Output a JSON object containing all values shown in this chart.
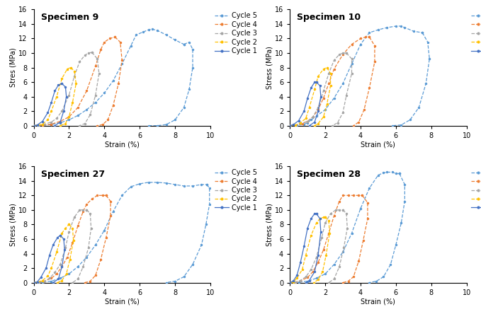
{
  "subplots": [
    {
      "title": "Specimen 9",
      "ylabel": "Stres (MPa)"
    },
    {
      "title": "Specimen 10",
      "ylabel": "Stress (MPa)"
    },
    {
      "title": "Specimen 27",
      "ylabel": "Stress (MPa)"
    },
    {
      "title": "Specimen 28",
      "ylabel": "Stress (MPa)"
    }
  ],
  "cycles_config": [
    {
      "label": "Cycle 5",
      "color": "#5B9BD5",
      "linestyle": "--"
    },
    {
      "label": "Cycle 4",
      "color": "#ED7D31",
      "linestyle": "--"
    },
    {
      "label": "Cycle 3",
      "color": "#A5A5A5",
      "linestyle": "--"
    },
    {
      "label": "Cycle 2",
      "color": "#FFC000",
      "linestyle": "--"
    },
    {
      "label": "Cycle 1",
      "color": "#4472C4",
      "linestyle": "-"
    }
  ],
  "specimen_9": {
    "cycle5_lx": [
      0.0,
      0.5,
      1.0,
      1.5,
      2.0,
      2.5,
      3.0,
      3.5,
      4.0,
      4.5,
      5.0,
      5.5,
      5.8,
      6.2,
      6.5,
      6.7,
      7.0,
      7.5,
      8.0,
      8.5
    ],
    "cycle5_ly": [
      0.0,
      0.05,
      0.15,
      0.4,
      0.8,
      1.4,
      2.2,
      3.2,
      4.5,
      6.2,
      8.5,
      11.0,
      12.5,
      12.9,
      13.2,
      13.3,
      13.1,
      12.5,
      11.8,
      11.2
    ],
    "cycle5_ux": [
      8.5,
      8.8,
      9.0,
      9.0,
      8.8,
      8.5,
      8.0,
      7.5,
      7.0,
      6.5
    ],
    "cycle5_uy": [
      11.2,
      11.5,
      10.5,
      8.0,
      5.0,
      2.5,
      0.8,
      0.15,
      0.0,
      0.0
    ],
    "cycle4_lx": [
      0.0,
      0.5,
      1.0,
      1.5,
      2.0,
      2.5,
      3.0,
      3.5,
      3.8,
      4.0,
      4.3,
      4.6
    ],
    "cycle4_ly": [
      0.0,
      0.05,
      0.2,
      0.6,
      1.2,
      2.5,
      4.8,
      8.2,
      10.5,
      11.5,
      12.0,
      12.2
    ],
    "cycle4_ux": [
      4.6,
      4.9,
      5.0,
      4.8,
      4.5,
      4.2,
      3.9,
      3.6
    ],
    "cycle4_uy": [
      12.2,
      11.5,
      9.0,
      5.8,
      2.8,
      0.8,
      0.15,
      0.0
    ],
    "cycle3_lx": [
      0.0,
      0.3,
      0.6,
      1.0,
      1.3,
      1.6,
      2.0,
      2.3,
      2.6,
      2.9,
      3.1,
      3.3
    ],
    "cycle3_ly": [
      0.0,
      0.05,
      0.2,
      0.5,
      1.0,
      2.0,
      4.2,
      6.8,
      8.8,
      9.7,
      10.0,
      10.1
    ],
    "cycle3_ux": [
      3.3,
      3.6,
      3.7,
      3.5,
      3.2,
      2.9,
      2.6
    ],
    "cycle3_uy": [
      10.1,
      9.2,
      7.2,
      4.2,
      1.5,
      0.3,
      0.0
    ],
    "cycle2_lx": [
      0.0,
      0.2,
      0.5,
      0.8,
      1.0,
      1.3,
      1.6,
      1.9,
      2.1
    ],
    "cycle2_ly": [
      0.0,
      0.05,
      0.2,
      0.8,
      2.0,
      4.0,
      6.5,
      7.8,
      8.0
    ],
    "cycle2_ux": [
      2.1,
      2.3,
      2.4,
      2.2,
      2.0,
      1.8,
      1.5
    ],
    "cycle2_uy": [
      8.0,
      7.5,
      5.8,
      3.2,
      1.2,
      0.3,
      0.0
    ],
    "cycle1_lx": [
      0.0,
      0.2,
      0.5,
      0.8,
      1.0,
      1.2,
      1.4,
      1.6
    ],
    "cycle1_ly": [
      0.0,
      0.1,
      0.6,
      1.8,
      3.2,
      4.8,
      5.6,
      5.8
    ],
    "cycle1_ux": [
      1.6,
      1.8,
      1.85,
      1.7,
      1.5,
      1.2
    ],
    "cycle1_uy": [
      5.8,
      5.3,
      4.0,
      2.0,
      0.5,
      0.0
    ]
  },
  "specimen_10": {
    "cycle5_lx": [
      0.0,
      0.4,
      0.8,
      1.0,
      1.2,
      1.5,
      2.0,
      2.5,
      3.0,
      3.5,
      4.0,
      4.5,
      5.0,
      5.5,
      6.0,
      6.3,
      6.5,
      7.0,
      7.5
    ],
    "cycle5_ly": [
      0.0,
      0.05,
      0.2,
      0.4,
      0.8,
      1.3,
      2.2,
      3.8,
      5.8,
      8.5,
      11.2,
      12.8,
      13.2,
      13.5,
      13.7,
      13.7,
      13.5,
      13.0,
      12.8
    ],
    "cycle5_ux": [
      7.5,
      7.8,
      7.9,
      7.7,
      7.3,
      6.8,
      6.3,
      5.8
    ],
    "cycle5_uy": [
      12.8,
      11.5,
      9.2,
      5.8,
      2.5,
      0.8,
      0.1,
      0.0
    ],
    "cycle4_lx": [
      0.0,
      0.3,
      0.7,
      1.0,
      1.3,
      1.6,
      1.9,
      2.2,
      2.5,
      3.0,
      3.5,
      4.0,
      4.3,
      4.5
    ],
    "cycle4_ly": [
      0.0,
      0.05,
      0.3,
      0.6,
      1.2,
      2.2,
      3.8,
      5.8,
      7.8,
      9.8,
      11.2,
      12.0,
      12.2,
      12.2
    ],
    "cycle4_ux": [
      4.5,
      4.8,
      4.8,
      4.5,
      4.2,
      3.9,
      3.6
    ],
    "cycle4_uy": [
      12.2,
      11.0,
      8.8,
      5.2,
      2.2,
      0.5,
      0.0
    ],
    "cycle3_lx": [
      0.0,
      0.3,
      0.6,
      1.0,
      1.3,
      1.6,
      1.9,
      2.2,
      2.5,
      2.8,
      3.0,
      3.2
    ],
    "cycle3_ly": [
      0.0,
      0.05,
      0.25,
      0.6,
      1.2,
      2.5,
      4.8,
      7.2,
      9.0,
      9.8,
      10.0,
      10.0
    ],
    "cycle3_ux": [
      3.2,
      3.5,
      3.5,
      3.2,
      3.0,
      2.7,
      2.4
    ],
    "cycle3_uy": [
      10.0,
      9.2,
      7.2,
      4.2,
      1.8,
      0.4,
      0.0
    ],
    "cycle2_lx": [
      0.0,
      0.3,
      0.6,
      0.9,
      1.1,
      1.4,
      1.6,
      1.9,
      2.1
    ],
    "cycle2_ly": [
      0.0,
      0.05,
      0.4,
      1.0,
      2.5,
      5.0,
      6.8,
      7.8,
      8.0
    ],
    "cycle2_ux": [
      2.1,
      2.3,
      2.3,
      2.1,
      1.9,
      1.6,
      1.4
    ],
    "cycle2_uy": [
      8.0,
      7.2,
      5.5,
      3.0,
      1.2,
      0.3,
      0.0
    ],
    "cycle1_lx": [
      0.0,
      0.2,
      0.5,
      0.8,
      1.0,
      1.2,
      1.4,
      1.5
    ],
    "cycle1_ly": [
      0.0,
      0.15,
      0.7,
      2.0,
      3.8,
      5.2,
      6.0,
      6.0
    ],
    "cycle1_ux": [
      1.5,
      1.7,
      1.75,
      1.6,
      1.4,
      1.1
    ],
    "cycle1_uy": [
      6.0,
      5.5,
      4.0,
      2.0,
      0.5,
      0.0
    ]
  },
  "specimen_27": {
    "cycle5_lx": [
      0.0,
      0.5,
      1.0,
      1.5,
      2.0,
      2.5,
      3.0,
      3.5,
      4.0,
      4.5,
      5.0,
      5.5,
      6.0,
      6.5,
      7.0,
      7.5,
      8.0,
      8.5,
      9.0,
      9.5,
      9.8
    ],
    "cycle5_ly": [
      0.0,
      0.05,
      0.2,
      0.6,
      1.2,
      2.2,
      3.5,
      5.2,
      7.2,
      9.8,
      12.0,
      13.2,
      13.6,
      13.8,
      13.8,
      13.7,
      13.5,
      13.3,
      13.3,
      13.5,
      13.5
    ],
    "cycle5_ux": [
      9.8,
      9.95,
      9.95,
      9.75,
      9.5,
      9.0,
      8.5,
      8.0,
      7.5
    ],
    "cycle5_uy": [
      13.5,
      13.0,
      10.8,
      8.0,
      5.2,
      2.5,
      0.8,
      0.2,
      0.0
    ],
    "cycle4_lx": [
      0.0,
      0.3,
      0.6,
      1.0,
      1.3,
      1.6,
      1.9,
      2.2,
      2.5,
      2.8,
      3.0,
      3.3,
      3.6,
      3.9,
      4.1
    ],
    "cycle4_ly": [
      0.0,
      0.05,
      0.2,
      0.6,
      1.2,
      2.2,
      3.5,
      5.5,
      7.8,
      9.8,
      10.8,
      11.5,
      12.0,
      12.0,
      12.0
    ],
    "cycle4_ux": [
      4.1,
      4.35,
      4.35,
      4.1,
      3.8,
      3.5,
      3.2,
      2.9
    ],
    "cycle4_uy": [
      12.0,
      11.2,
      9.2,
      6.2,
      3.2,
      1.0,
      0.2,
      0.0
    ],
    "cycle3_lx": [
      0.0,
      0.3,
      0.6,
      0.9,
      1.2,
      1.5,
      1.8,
      2.0,
      2.3,
      2.6,
      2.8,
      3.0
    ],
    "cycle3_ly": [
      0.0,
      0.05,
      0.2,
      0.6,
      1.4,
      2.5,
      4.8,
      7.0,
      9.0,
      10.0,
      10.0,
      10.0
    ],
    "cycle3_ux": [
      3.0,
      3.2,
      3.25,
      3.1,
      2.8,
      2.5,
      2.2
    ],
    "cycle3_uy": [
      10.0,
      9.5,
      7.5,
      4.8,
      2.2,
      0.5,
      0.0
    ],
    "cycle2_lx": [
      0.0,
      0.2,
      0.5,
      0.8,
      1.0,
      1.3,
      1.6,
      1.8,
      2.0
    ],
    "cycle2_ly": [
      0.0,
      0.05,
      0.3,
      0.9,
      2.0,
      4.2,
      6.8,
      7.5,
      8.0
    ],
    "cycle2_ux": [
      2.0,
      2.2,
      2.25,
      2.05,
      1.85,
      1.6,
      1.35
    ],
    "cycle2_uy": [
      8.0,
      7.5,
      5.8,
      3.2,
      1.2,
      0.3,
      0.0
    ],
    "cycle1_lx": [
      0.0,
      0.2,
      0.4,
      0.7,
      0.9,
      1.1,
      1.35,
      1.5
    ],
    "cycle1_ly": [
      0.0,
      0.1,
      0.7,
      2.0,
      3.8,
      5.2,
      6.2,
      6.5
    ],
    "cycle1_ux": [
      1.5,
      1.7,
      1.75,
      1.6,
      1.4,
      1.1
    ],
    "cycle1_uy": [
      6.5,
      6.0,
      4.5,
      2.2,
      0.5,
      0.0
    ]
  },
  "specimen_28": {
    "cycle5_lx": [
      0.0,
      0.5,
      1.0,
      1.5,
      2.0,
      2.5,
      3.0,
      3.5,
      4.0,
      4.5,
      5.0,
      5.3,
      5.5,
      5.8,
      6.0,
      6.2
    ],
    "cycle5_ly": [
      0.0,
      0.05,
      0.2,
      0.6,
      1.2,
      2.5,
      4.2,
      6.8,
      10.2,
      13.0,
      14.8,
      15.1,
      15.2,
      15.2,
      15.0,
      15.0
    ],
    "cycle5_ux": [
      6.2,
      6.5,
      6.5,
      6.3,
      6.0,
      5.7,
      5.3,
      4.9,
      4.5
    ],
    "cycle5_uy": [
      15.0,
      13.5,
      11.2,
      8.2,
      5.2,
      2.5,
      0.8,
      0.2,
      0.0
    ],
    "cycle4_lx": [
      0.0,
      0.3,
      0.6,
      1.0,
      1.3,
      1.6,
      1.9,
      2.2,
      2.5,
      2.8,
      3.0,
      3.3,
      3.6,
      3.9,
      4.1
    ],
    "cycle4_ly": [
      0.0,
      0.05,
      0.25,
      0.7,
      1.5,
      2.8,
      4.5,
      6.8,
      9.2,
      11.2,
      12.0,
      12.0,
      12.0,
      12.0,
      12.0
    ],
    "cycle4_ux": [
      4.1,
      4.4,
      4.4,
      4.15,
      3.9,
      3.6,
      3.3,
      3.0
    ],
    "cycle4_uy": [
      12.0,
      11.0,
      8.8,
      5.8,
      3.0,
      0.8,
      0.2,
      0.0
    ],
    "cycle3_lx": [
      0.0,
      0.3,
      0.6,
      0.9,
      1.2,
      1.5,
      1.8,
      2.0,
      2.3,
      2.6,
      2.8,
      3.0
    ],
    "cycle3_ly": [
      0.0,
      0.05,
      0.3,
      0.8,
      1.8,
      3.5,
      6.2,
      8.2,
      9.5,
      10.0,
      10.0,
      10.0
    ],
    "cycle3_ux": [
      3.0,
      3.2,
      3.25,
      3.05,
      2.8,
      2.5,
      2.2
    ],
    "cycle3_uy": [
      10.0,
      9.5,
      7.5,
      4.8,
      2.2,
      0.5,
      0.0
    ],
    "cycle2_lx": [
      0.0,
      0.2,
      0.4,
      0.7,
      0.9,
      1.2,
      1.5,
      1.7,
      1.9,
      2.0
    ],
    "cycle2_ly": [
      0.0,
      0.1,
      0.6,
      1.8,
      3.8,
      6.5,
      8.2,
      8.8,
      9.0,
      9.0
    ],
    "cycle2_ux": [
      2.0,
      2.2,
      2.25,
      2.05,
      1.85,
      1.6,
      1.35
    ],
    "cycle2_uy": [
      9.0,
      8.5,
      6.8,
      3.8,
      1.5,
      0.4,
      0.0
    ],
    "cycle1_lx": [
      0.0,
      0.2,
      0.4,
      0.6,
      0.8,
      1.0,
      1.2,
      1.4,
      1.5
    ],
    "cycle1_ly": [
      0.0,
      0.25,
      1.0,
      2.8,
      5.0,
      7.5,
      8.8,
      9.5,
      9.5
    ],
    "cycle1_ux": [
      1.5,
      1.7,
      1.75,
      1.6,
      1.4,
      1.1,
      0.9
    ],
    "cycle1_uy": [
      9.5,
      8.8,
      7.0,
      3.8,
      1.5,
      0.3,
      0.0
    ]
  },
  "ylim": [
    0,
    16
  ],
  "xlim": [
    0,
    10
  ],
  "yticks": [
    0,
    2,
    4,
    6,
    8,
    10,
    12,
    14,
    16
  ],
  "xticks": [
    0,
    2,
    4,
    6,
    8,
    10
  ],
  "xlabel": "Strain (%)",
  "markersize": 3,
  "linewidth": 0.9,
  "title_fontsize": 9,
  "label_fontsize": 7,
  "tick_fontsize": 7,
  "legend_fontsize": 7
}
